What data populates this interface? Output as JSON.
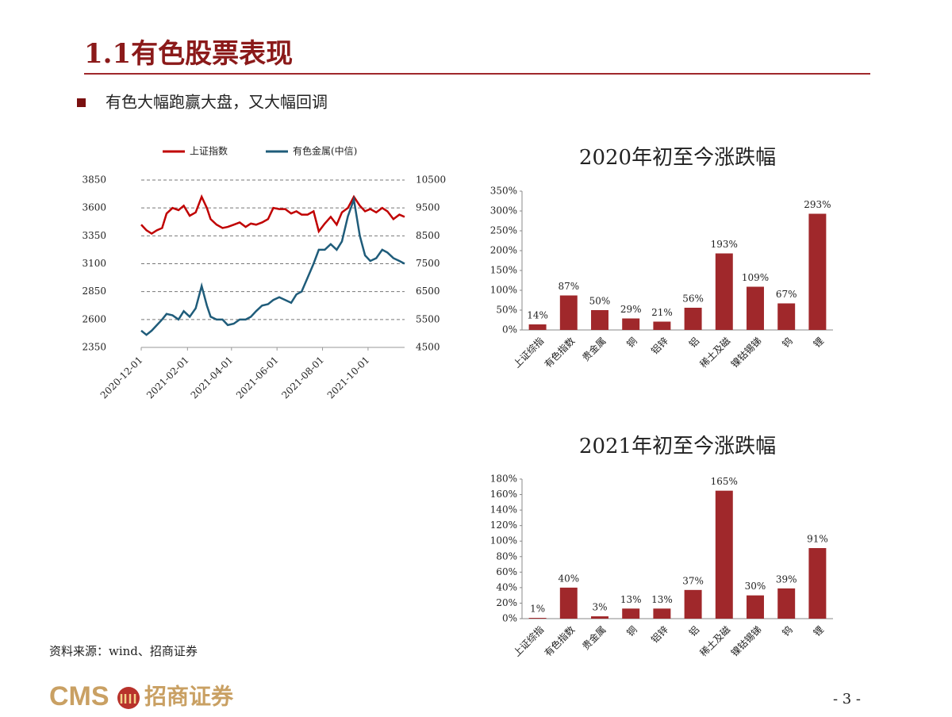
{
  "title": "1.1有色股票表现",
  "bullet": "有色大幅跑赢大盘，又大幅回调",
  "source": "资料来源：wind、招商证券",
  "logo": {
    "en": "CMS",
    "cn": "招商证券"
  },
  "page_number": "- 3 -",
  "chart_data": [
    {
      "type": "line",
      "x": [
        "2020-12-01",
        "2020-12-08",
        "2020-12-15",
        "2020-12-22",
        "2020-12-29",
        "2021-01-04",
        "2021-01-12",
        "2021-01-20",
        "2021-01-27",
        "2021-02-04",
        "2021-02-12",
        "2021-02-20",
        "2021-02-27",
        "2021-03-04",
        "2021-03-12",
        "2021-03-20",
        "2021-03-27",
        "2021-04-04",
        "2021-04-12",
        "2021-04-20",
        "2021-04-27",
        "2021-05-04",
        "2021-05-12",
        "2021-05-20",
        "2021-05-27",
        "2021-06-04",
        "2021-06-12",
        "2021-06-20",
        "2021-06-27",
        "2021-07-04",
        "2021-07-12",
        "2021-07-20",
        "2021-07-27",
        "2021-08-04",
        "2021-08-12",
        "2021-08-20",
        "2021-08-27",
        "2021-09-04",
        "2021-09-12",
        "2021-09-20",
        "2021-09-27",
        "2021-10-04",
        "2021-10-12",
        "2021-10-20",
        "2021-10-27",
        "2021-11-04",
        "2021-11-12",
        "2021-11-19"
      ],
      "xlim": [
        "2020-12-01",
        "2021-11-19"
      ],
      "xticks": [
        "2020-12-01",
        "2021-02-01",
        "2021-04-01",
        "2021-06-01",
        "2021-08-01",
        "2021-10-01"
      ],
      "ylim": [
        2350,
        3850
      ],
      "yticks": [
        2350,
        2600,
        2850,
        3100,
        3350,
        3600,
        3850
      ],
      "y2lim": [
        4500,
        10500
      ],
      "y2ticks": [
        4500,
        5500,
        6500,
        7500,
        8500,
        9500,
        10500
      ],
      "grid": true,
      "legend": "top",
      "series": [
        {
          "name": "上证指数",
          "color": "#c00000",
          "values": [
            3450,
            3400,
            3370,
            3400,
            3420,
            3550,
            3600,
            3580,
            3620,
            3530,
            3560,
            3700,
            3600,
            3500,
            3450,
            3420,
            3430,
            3450,
            3470,
            3430,
            3460,
            3450,
            3470,
            3500,
            3600,
            3590,
            3590,
            3550,
            3570,
            3540,
            3540,
            3570,
            3390,
            3460,
            3520,
            3450,
            3560,
            3600,
            3700,
            3620,
            3570,
            3590,
            3560,
            3600,
            3570,
            3500,
            3540,
            3520
          ]
        },
        {
          "name": "有色金属(中信)",
          "color": "#1f5c7a",
          "axis": "y2",
          "values": [
            5100,
            4950,
            5100,
            5300,
            5500,
            5700,
            5650,
            5500,
            5800,
            5600,
            5900,
            6700,
            6000,
            5600,
            5500,
            5500,
            5300,
            5350,
            5500,
            5500,
            5600,
            5800,
            6000,
            6050,
            6200,
            6300,
            6200,
            6100,
            6400,
            6500,
            7000,
            7500,
            8000,
            8000,
            8200,
            8000,
            8300,
            9200,
            9800,
            8500,
            7800,
            7600,
            7700,
            8000,
            7900,
            7700,
            7600,
            7500
          ]
        }
      ]
    },
    {
      "type": "bar",
      "title": "2020年初至今涨跌幅",
      "categories": [
        "上证综指",
        "有色指数",
        "贵金属",
        "铜",
        "铝锌",
        "铝",
        "稀土及磁",
        "镍钴锡锑",
        "钨",
        "锂"
      ],
      "values": [
        14,
        87,
        50,
        29,
        21,
        56,
        193,
        109,
        67,
        293
      ],
      "value_labels": [
        "14%",
        "87%",
        "50%",
        "29%",
        "21%",
        "56%",
        "193%",
        "109%",
        "67%",
        "293%"
      ],
      "color": "#a0282b",
      "ylim": [
        0,
        350
      ],
      "yticks": [
        {
          "value": 0,
          "label": "0%"
        },
        {
          "value": 50,
          "label": "50%"
        },
        {
          "value": 100,
          "label": "100%"
        },
        {
          "value": 150,
          "label": "150%"
        },
        {
          "value": 200,
          "label": "200%"
        },
        {
          "value": 250,
          "label": "250%"
        },
        {
          "value": 300,
          "label": "300%"
        },
        {
          "value": 350,
          "label": "350%"
        }
      ]
    },
    {
      "type": "bar",
      "title": "2021年初至今涨跌幅",
      "categories": [
        "上证综指",
        "有色指数",
        "贵金属",
        "铜",
        "铝锌",
        "铝",
        "稀土及磁",
        "镍钴锡锑",
        "钨",
        "锂"
      ],
      "values": [
        1,
        40,
        3,
        13,
        13,
        37,
        165,
        30,
        39,
        91
      ],
      "value_labels": [
        "1%",
        "40%",
        "3%",
        "13%",
        "13%",
        "37%",
        "165%",
        "30%",
        "39%",
        "91%"
      ],
      "color": "#a0282b",
      "ylim": [
        0,
        180
      ],
      "yticks": [
        {
          "value": 0,
          "label": "0%"
        },
        {
          "value": 20,
          "label": "20%"
        },
        {
          "value": 40,
          "label": "40%"
        },
        {
          "value": 60,
          "label": "60%"
        },
        {
          "value": 80,
          "label": "80%"
        },
        {
          "value": 100,
          "label": "100%"
        },
        {
          "value": 120,
          "label": "120%"
        },
        {
          "value": 140,
          "label": "140%"
        },
        {
          "value": 160,
          "label": "160%"
        },
        {
          "value": 180,
          "label": "180%"
        }
      ]
    }
  ]
}
